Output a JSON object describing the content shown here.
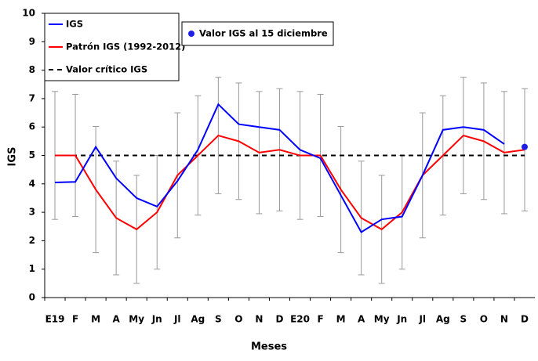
{
  "chart_data": {
    "type": "line",
    "y_label": "IGS",
    "x_label": "Meses",
    "categories": [
      "E19",
      "F",
      "M",
      "A",
      "My",
      "Jn",
      "Jl",
      "Ag",
      "S",
      "O",
      "N",
      "D",
      "E20",
      "F",
      "M",
      "A",
      "My",
      "Jn",
      "Jl",
      "Ag",
      "S",
      "O",
      "N",
      "D"
    ],
    "ylim": [
      0,
      10
    ],
    "yticks": [
      0,
      1,
      2,
      3,
      4,
      5,
      6,
      7,
      8,
      9,
      10
    ],
    "grid": false,
    "series": [
      {
        "name": "IGS",
        "color": "#0000ff",
        "style": "solid",
        "values": [
          4.05,
          4.07,
          5.3,
          4.2,
          3.5,
          3.2,
          4.1,
          5.2,
          6.8,
          6.1,
          6.0,
          5.9,
          5.2,
          4.9,
          3.6,
          2.3,
          2.75,
          2.85,
          4.3,
          5.9,
          6.0,
          5.9,
          5.4,
          null
        ]
      },
      {
        "name": "Patrón IGS (1992-2012)",
        "color": "#ff0000",
        "style": "solid",
        "values": [
          5.0,
          5.0,
          3.8,
          2.8,
          2.4,
          3.0,
          4.3,
          5.0,
          5.7,
          5.5,
          5.1,
          5.2,
          5.0,
          5.0,
          3.8,
          2.8,
          2.4,
          3.0,
          4.3,
          5.0,
          5.7,
          5.5,
          5.1,
          5.2
        ],
        "errors": [
          2.25,
          2.15,
          2.22,
          2.0,
          1.9,
          2.0,
          2.2,
          2.1,
          2.05,
          2.05,
          2.15,
          2.15,
          2.25,
          2.15,
          2.22,
          2.0,
          1.9,
          2.0,
          2.2,
          2.1,
          2.05,
          2.05,
          2.15,
          2.15
        ],
        "error_color": "#999999"
      },
      {
        "name": "Valor crítico IGS",
        "color": "#000000",
        "style": "dashed",
        "values": [
          5,
          5,
          5,
          5,
          5,
          5,
          5,
          5,
          5,
          5,
          5,
          5,
          5,
          5,
          5,
          5,
          5,
          5,
          5,
          5,
          5,
          5,
          5,
          5
        ]
      },
      {
        "name": "Valor IGS al 15 diciembre",
        "color": "#1f1fe6",
        "style": "marker",
        "values": [
          null,
          null,
          null,
          null,
          null,
          null,
          null,
          null,
          null,
          null,
          null,
          null,
          null,
          null,
          null,
          null,
          null,
          null,
          null,
          null,
          null,
          null,
          null,
          5.3
        ]
      }
    ]
  }
}
